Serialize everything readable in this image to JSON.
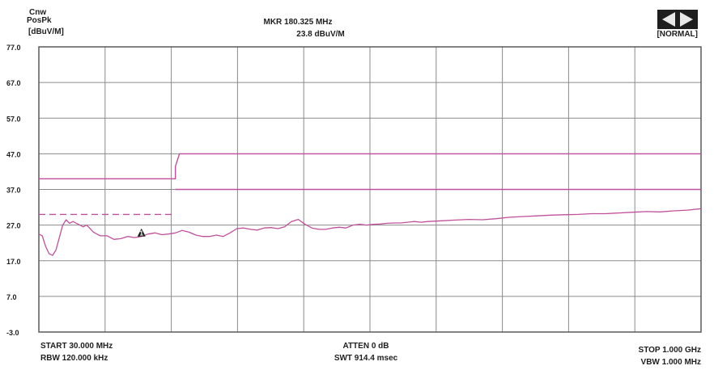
{
  "header": {
    "mode_line1": "Cnw",
    "mode_line2": "PosPk",
    "unit": "[dBuV/M]",
    "marker_freq": "MKR 180.325 MHz",
    "marker_level": "23.8 dBuV/M",
    "normal": "[NORMAL]",
    "nav_icon": "left-right-arrow-icon"
  },
  "footer": {
    "start": "START 30.000 MHz",
    "rbw": "RBW 120.000 kHz",
    "atten": "ATTEN 0 dB",
    "swt": "SWT 914.4 msec",
    "stop": "STOP 1.000 GHz",
    "vbw": "VBW 1.000 MHz"
  },
  "colors": {
    "trace": "#c0509a",
    "limit": "#c0509a",
    "grid": "#8a8a8a",
    "frame": "#5a5a5a",
    "text": "#1e1e1e"
  },
  "chart_data": {
    "type": "line",
    "title": "",
    "xlabel": "",
    "ylabel": "[dBuV/M]",
    "y_ticks": [
      "77.0",
      "67.0",
      "57.0",
      "47.0",
      "37.0",
      "27.0",
      "17.0",
      "7.0",
      "-3.0"
    ],
    "ylim": [
      -3,
      77
    ],
    "xlim": [
      30,
      1000
    ],
    "x_divisions": 10,
    "grid": true,
    "series": [
      {
        "kind": "limit",
        "style": "solid",
        "x": [
          30,
          230,
          230,
          236,
          1000
        ],
        "y": [
          40,
          40,
          43.5,
          47,
          47
        ]
      },
      {
        "kind": "limit",
        "style": "solid",
        "x": [
          230,
          1000
        ],
        "y": [
          37,
          37
        ]
      },
      {
        "kind": "limit",
        "style": "dashed",
        "x": [
          30,
          230
        ],
        "y": [
          30,
          30
        ]
      },
      {
        "kind": "trace",
        "style": "solid",
        "x": [
          30,
          35,
          40,
          45,
          50,
          55,
          60,
          65,
          70,
          75,
          80,
          85,
          90,
          95,
          100,
          110,
          120,
          130,
          140,
          150,
          160,
          170,
          180,
          190,
          200,
          210,
          220,
          230,
          240,
          250,
          260,
          270,
          280,
          290,
          300,
          310,
          320,
          330,
          340,
          350,
          360,
          370,
          380,
          390,
          400,
          410,
          420,
          430,
          440,
          450,
          460,
          470,
          480,
          490,
          500,
          510,
          520,
          530,
          540,
          550,
          560,
          570,
          580,
          590,
          600,
          620,
          640,
          660,
          680,
          700,
          720,
          740,
          760,
          780,
          800,
          820,
          840,
          860,
          880,
          900,
          920,
          940,
          960,
          980,
          1000
        ],
        "y": [
          24.5,
          24,
          21,
          19,
          18.5,
          20,
          23.5,
          27,
          28.5,
          27.5,
          28,
          27.5,
          27,
          26.5,
          27,
          25,
          24,
          24,
          23,
          23.2,
          23.8,
          23.5,
          23.8,
          24.5,
          24.8,
          24.3,
          24.5,
          24.8,
          25.5,
          25,
          24.2,
          23.8,
          23.8,
          24.2,
          23.8,
          24.8,
          26,
          26.2,
          25.8,
          25.6,
          26.2,
          26.3,
          26,
          26.5,
          28,
          28.6,
          27.2,
          26.2,
          25.8,
          25.8,
          26.2,
          26.4,
          26.2,
          27,
          27.2,
          27,
          27.2,
          27.3,
          27.5,
          27.6,
          27.6,
          27.8,
          28,
          27.8,
          28,
          28.2,
          28.4,
          28.6,
          28.5,
          28.8,
          29.2,
          29.4,
          29.6,
          29.8,
          29.9,
          30,
          30.2,
          30.2,
          30.4,
          30.6,
          30.8,
          30.7,
          31,
          31.2,
          31.6
        ]
      }
    ],
    "marker": {
      "x": 180.325,
      "y": 23.8,
      "label": "1"
    }
  }
}
